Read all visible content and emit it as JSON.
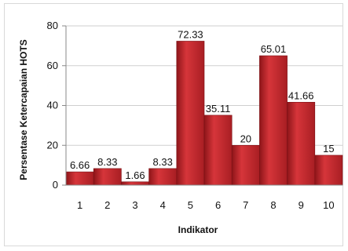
{
  "chart_data": {
    "type": "bar",
    "categories": [
      "1",
      "2",
      "3",
      "4",
      "5",
      "6",
      "7",
      "8",
      "9",
      "10"
    ],
    "values": [
      6.66,
      8.33,
      1.66,
      8.33,
      72.33,
      35.11,
      20,
      65.01,
      41.66,
      15
    ],
    "data_labels": [
      "6.66",
      "8.33",
      "1.66",
      "8.33",
      "72.33",
      "35.11",
      "20",
      "65.01",
      "41.66",
      "15"
    ],
    "title": "",
    "xlabel": "Indikator",
    "ylabel": "Persentase  Ketercapaian HOTS",
    "ylim": [
      0,
      80
    ],
    "yticks": [
      "0",
      "20",
      "40",
      "60",
      "80"
    ],
    "grid": true,
    "bar_color": "#c0282d"
  }
}
